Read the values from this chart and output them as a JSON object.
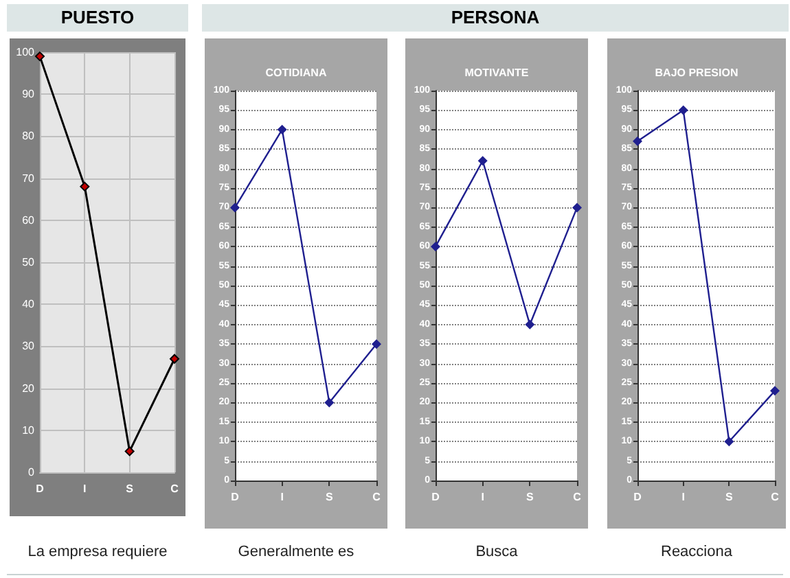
{
  "chart_data": [
    {
      "type": "line",
      "annotations": [
        "PUESTO",
        "La empresa requiere"
      ],
      "categories": [
        "D",
        "I",
        "S",
        "C"
      ],
      "series": [
        {
          "color": "#000000",
          "values": [
            99,
            68,
            5,
            27
          ]
        }
      ],
      "ylim": [
        0,
        100
      ],
      "yticks": [
        0,
        10,
        20,
        30,
        40,
        50,
        60,
        70,
        80,
        90,
        100
      ],
      "grid": true,
      "marker": "diamond",
      "line_style": "solid"
    },
    {
      "type": "line",
      "title": "COTIDIANA",
      "annotations": [
        "PERSONA",
        "Generalmente es"
      ],
      "categories": [
        "D",
        "I",
        "S",
        "C"
      ],
      "series": [
        {
          "color": "#1f1f8f",
          "values": [
            70,
            90,
            20,
            35
          ]
        }
      ],
      "ylim": [
        0,
        100
      ],
      "yticks": [
        0,
        5,
        10,
        15,
        20,
        25,
        30,
        35,
        40,
        45,
        50,
        55,
        60,
        65,
        70,
        75,
        80,
        85,
        90,
        95,
        100
      ],
      "grid": "y",
      "marker": "diamond",
      "line_style": "solid"
    },
    {
      "type": "line",
      "title": "MOTIVANTE",
      "annotations": [
        "Busca"
      ],
      "categories": [
        "D",
        "I",
        "S",
        "C"
      ],
      "series": [
        {
          "color": "#1f1f8f",
          "values": [
            60,
            82,
            40,
            70
          ]
        }
      ],
      "ylim": [
        0,
        100
      ],
      "yticks": [
        0,
        5,
        10,
        15,
        20,
        25,
        30,
        35,
        40,
        45,
        50,
        55,
        60,
        65,
        70,
        75,
        80,
        85,
        90,
        95,
        100
      ],
      "grid": "y",
      "marker": "diamond",
      "line_style": "solid"
    },
    {
      "type": "line",
      "title": "BAJO PRESION",
      "annotations": [
        "Reacciona"
      ],
      "categories": [
        "D",
        "I",
        "S",
        "C"
      ],
      "series": [
        {
          "color": "#1f1f8f",
          "values": [
            87,
            95,
            10,
            23
          ]
        }
      ],
      "ylim": [
        0,
        100
      ],
      "yticks": [
        0,
        5,
        10,
        15,
        20,
        25,
        30,
        35,
        40,
        45,
        50,
        55,
        60,
        65,
        70,
        75,
        80,
        85,
        90,
        95,
        100
      ],
      "grid": "y",
      "marker": "diamond",
      "line_style": "solid"
    }
  ]
}
